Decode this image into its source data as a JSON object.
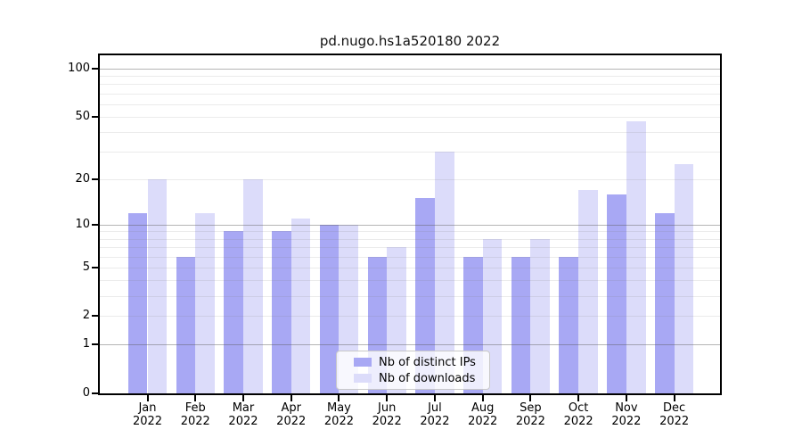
{
  "title": "pd.nugo.hs1a520180 2022",
  "legend": {
    "items": [
      {
        "label": "Nb of distinct IPs",
        "color": "#a8a8f4"
      },
      {
        "label": "Nb of downloads",
        "color": "#dcdcfa"
      }
    ]
  },
  "chart_data": {
    "type": "bar",
    "title": "pd.nugo.hs1a520180 2022",
    "categories": [
      "Jan",
      "Feb",
      "Mar",
      "Apr",
      "May",
      "Jun",
      "Jul",
      "Aug",
      "Sep",
      "Oct",
      "Nov",
      "Dec"
    ],
    "year_label": "2022",
    "series": [
      {
        "name": "Nb of distinct IPs",
        "color": "#a8a8f4",
        "values": [
          12,
          6,
          9,
          9,
          10,
          6,
          15,
          6,
          6,
          6,
          16,
          12
        ]
      },
      {
        "name": "Nb of downloads",
        "color": "#dcdcfa",
        "values": [
          20,
          12,
          20,
          11,
          10,
          7,
          30,
          8,
          8,
          17,
          47,
          25
        ]
      }
    ],
    "xlabel": "",
    "ylabel": "",
    "y_scale": "log1p",
    "y_ticks": [
      0,
      1,
      2,
      5,
      10,
      20,
      50,
      100
    ],
    "y_tick_labels": [
      "0",
      "1",
      "2",
      "5",
      "10",
      "20",
      "50",
      "100"
    ],
    "y_major_gridlines": [
      1,
      10,
      100
    ],
    "y_minor_gridlines": [
      2,
      3,
      4,
      5,
      6,
      7,
      8,
      9,
      20,
      30,
      40,
      50,
      60,
      70,
      80,
      90
    ],
    "ylim": [
      0,
      121
    ],
    "grid": "on",
    "legend_position": "bottom-center"
  },
  "colors": {
    "grid_major": "rgba(90,90,90,0.45)",
    "grid_minor": "rgba(120,120,120,0.15)",
    "spine": "#000000",
    "text": "#000000",
    "legend_border": "#c8c8c8"
  }
}
